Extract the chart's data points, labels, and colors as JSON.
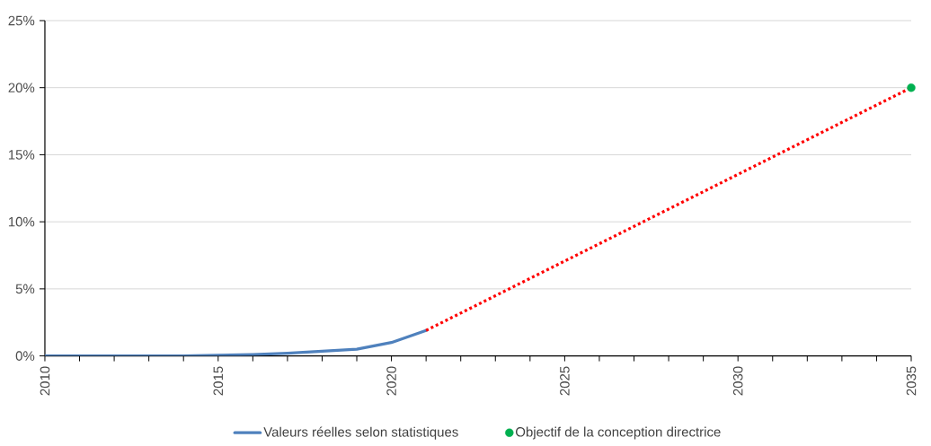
{
  "chart_data": {
    "type": "line",
    "x": [
      2010,
      2011,
      2012,
      2013,
      2014,
      2015,
      2016,
      2017,
      2018,
      2019,
      2020,
      2021,
      2035
    ],
    "series": [
      {
        "name": "Valeurs réelles selon statistiques",
        "color": "#4f81bd",
        "line_style": "solid",
        "values": [
          0,
          0,
          0,
          0,
          0,
          0.05,
          0.1,
          0.2,
          0.35,
          0.5,
          1.0,
          1.9,
          null
        ]
      },
      {
        "color": "#ff0000",
        "line_style": "dotted",
        "values": [
          null,
          null,
          null,
          null,
          null,
          null,
          null,
          null,
          null,
          null,
          null,
          1.9,
          20
        ]
      },
      {
        "name": "Objectif de la conception directrice",
        "color": "#00b050",
        "type": "scatter",
        "marker": "circle",
        "values": [
          null,
          null,
          null,
          null,
          null,
          null,
          null,
          null,
          null,
          null,
          null,
          null,
          20
        ]
      }
    ],
    "xlim": [
      2010,
      2035
    ],
    "xticks": [
      {
        "value": 2010,
        "label": "2010"
      },
      {
        "value": 2011,
        "label": null
      },
      {
        "value": 2012,
        "label": null
      },
      {
        "value": 2013,
        "label": null
      },
      {
        "value": 2014,
        "label": null
      },
      {
        "value": 2015,
        "label": "2015"
      },
      {
        "value": 2016,
        "label": null
      },
      {
        "value": 2017,
        "label": null
      },
      {
        "value": 2018,
        "label": null
      },
      {
        "value": 2019,
        "label": null
      },
      {
        "value": 2020,
        "label": "2020"
      },
      {
        "value": 2021,
        "label": null
      },
      {
        "value": 2022,
        "label": null
      },
      {
        "value": 2023,
        "label": null
      },
      {
        "value": 2024,
        "label": null
      },
      {
        "value": 2025,
        "label": "2025"
      },
      {
        "value": 2026,
        "label": null
      },
      {
        "value": 2027,
        "label": null
      },
      {
        "value": 2028,
        "label": null
      },
      {
        "value": 2029,
        "label": null
      },
      {
        "value": 2030,
        "label": "2030"
      },
      {
        "value": 2031,
        "label": null
      },
      {
        "value": 2032,
        "label": null
      },
      {
        "value": 2033,
        "label": null
      },
      {
        "value": 2034,
        "label": null
      },
      {
        "value": 2035,
        "label": "2035"
      }
    ],
    "ylim": [
      0,
      25
    ],
    "yticks": [
      {
        "value": 0,
        "label": "0%"
      },
      {
        "value": 5,
        "label": "5%"
      },
      {
        "value": 10,
        "label": "10%"
      },
      {
        "value": 15,
        "label": "15%"
      },
      {
        "value": 20,
        "label": "20%"
      },
      {
        "value": 25,
        "label": "25%"
      }
    ],
    "grid": "y",
    "legend": "bottom"
  }
}
